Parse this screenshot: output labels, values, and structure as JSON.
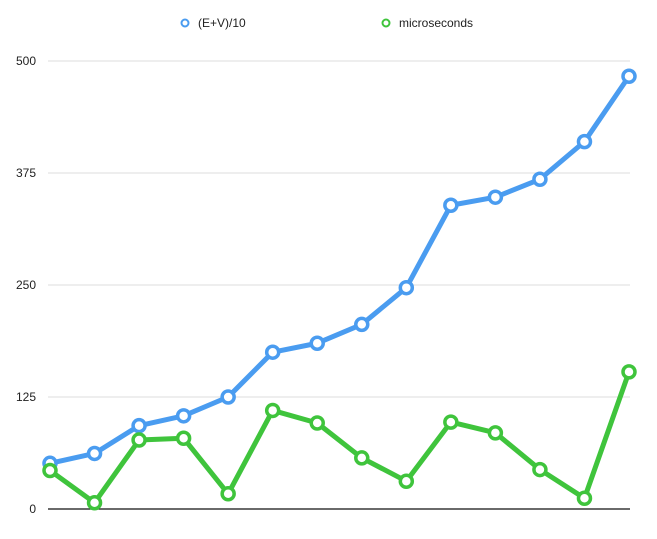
{
  "chart_data": {
    "type": "line",
    "title": "",
    "xlabel": "",
    "ylabel": "",
    "ylim": [
      0,
      500
    ],
    "yticks": [
      0,
      125,
      250,
      375,
      500
    ],
    "grid": true,
    "legend_position": "top-center",
    "x": [
      1,
      2,
      3,
      4,
      5,
      6,
      7,
      8,
      9,
      10,
      11,
      12,
      13,
      14
    ],
    "series": [
      {
        "name": "(E+V)/10",
        "color": "#4a9cf0",
        "values": [
          51,
          62,
          93,
          104,
          125,
          175,
          185,
          206,
          247,
          339,
          348,
          368,
          410,
          483
        ]
      },
      {
        "name": "microseconds",
        "color": "#3fc43c",
        "values": [
          43,
          7,
          77,
          79,
          17,
          110,
          96,
          57,
          31,
          97,
          85,
          44,
          12,
          153
        ]
      }
    ]
  }
}
